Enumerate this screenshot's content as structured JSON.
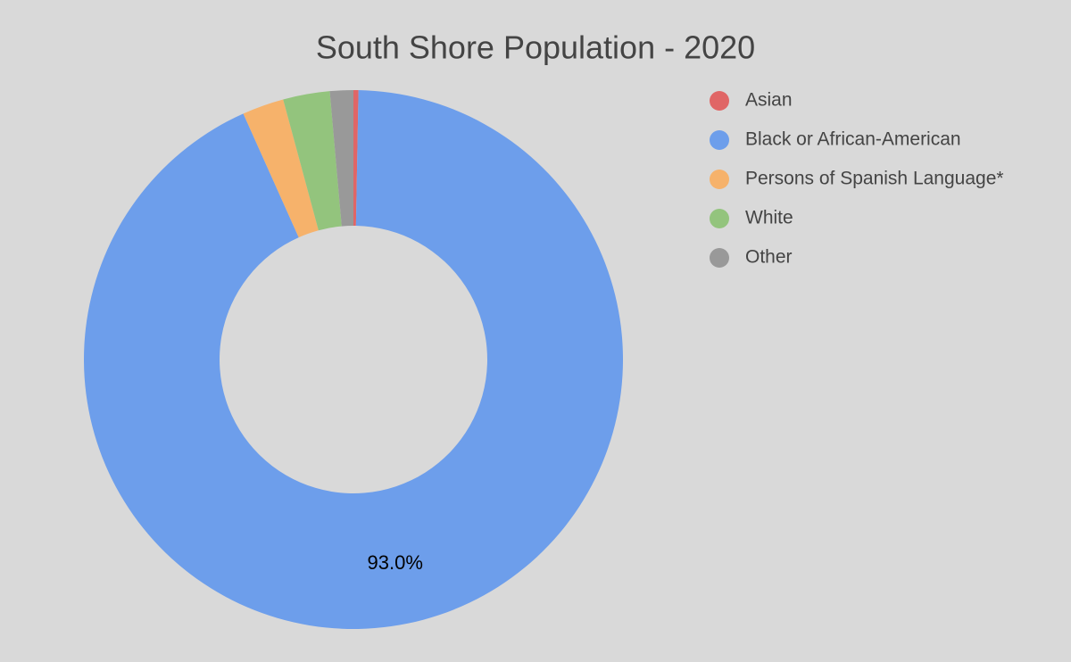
{
  "chart_data": {
    "type": "pie",
    "title": "South Shore Population - 2020",
    "categories": [
      "Asian",
      "Black or African-American",
      "Persons of Spanish Language*",
      "White",
      "Other"
    ],
    "values": [
      0.3,
      93.0,
      2.5,
      2.8,
      1.4
    ],
    "value_labels": [
      null,
      "93.0%",
      null,
      null,
      null
    ],
    "colors": [
      "#e06666",
      "#6d9eeb",
      "#f6b26b",
      "#93c47d",
      "#999999"
    ],
    "donut": true,
    "legend": "right"
  }
}
